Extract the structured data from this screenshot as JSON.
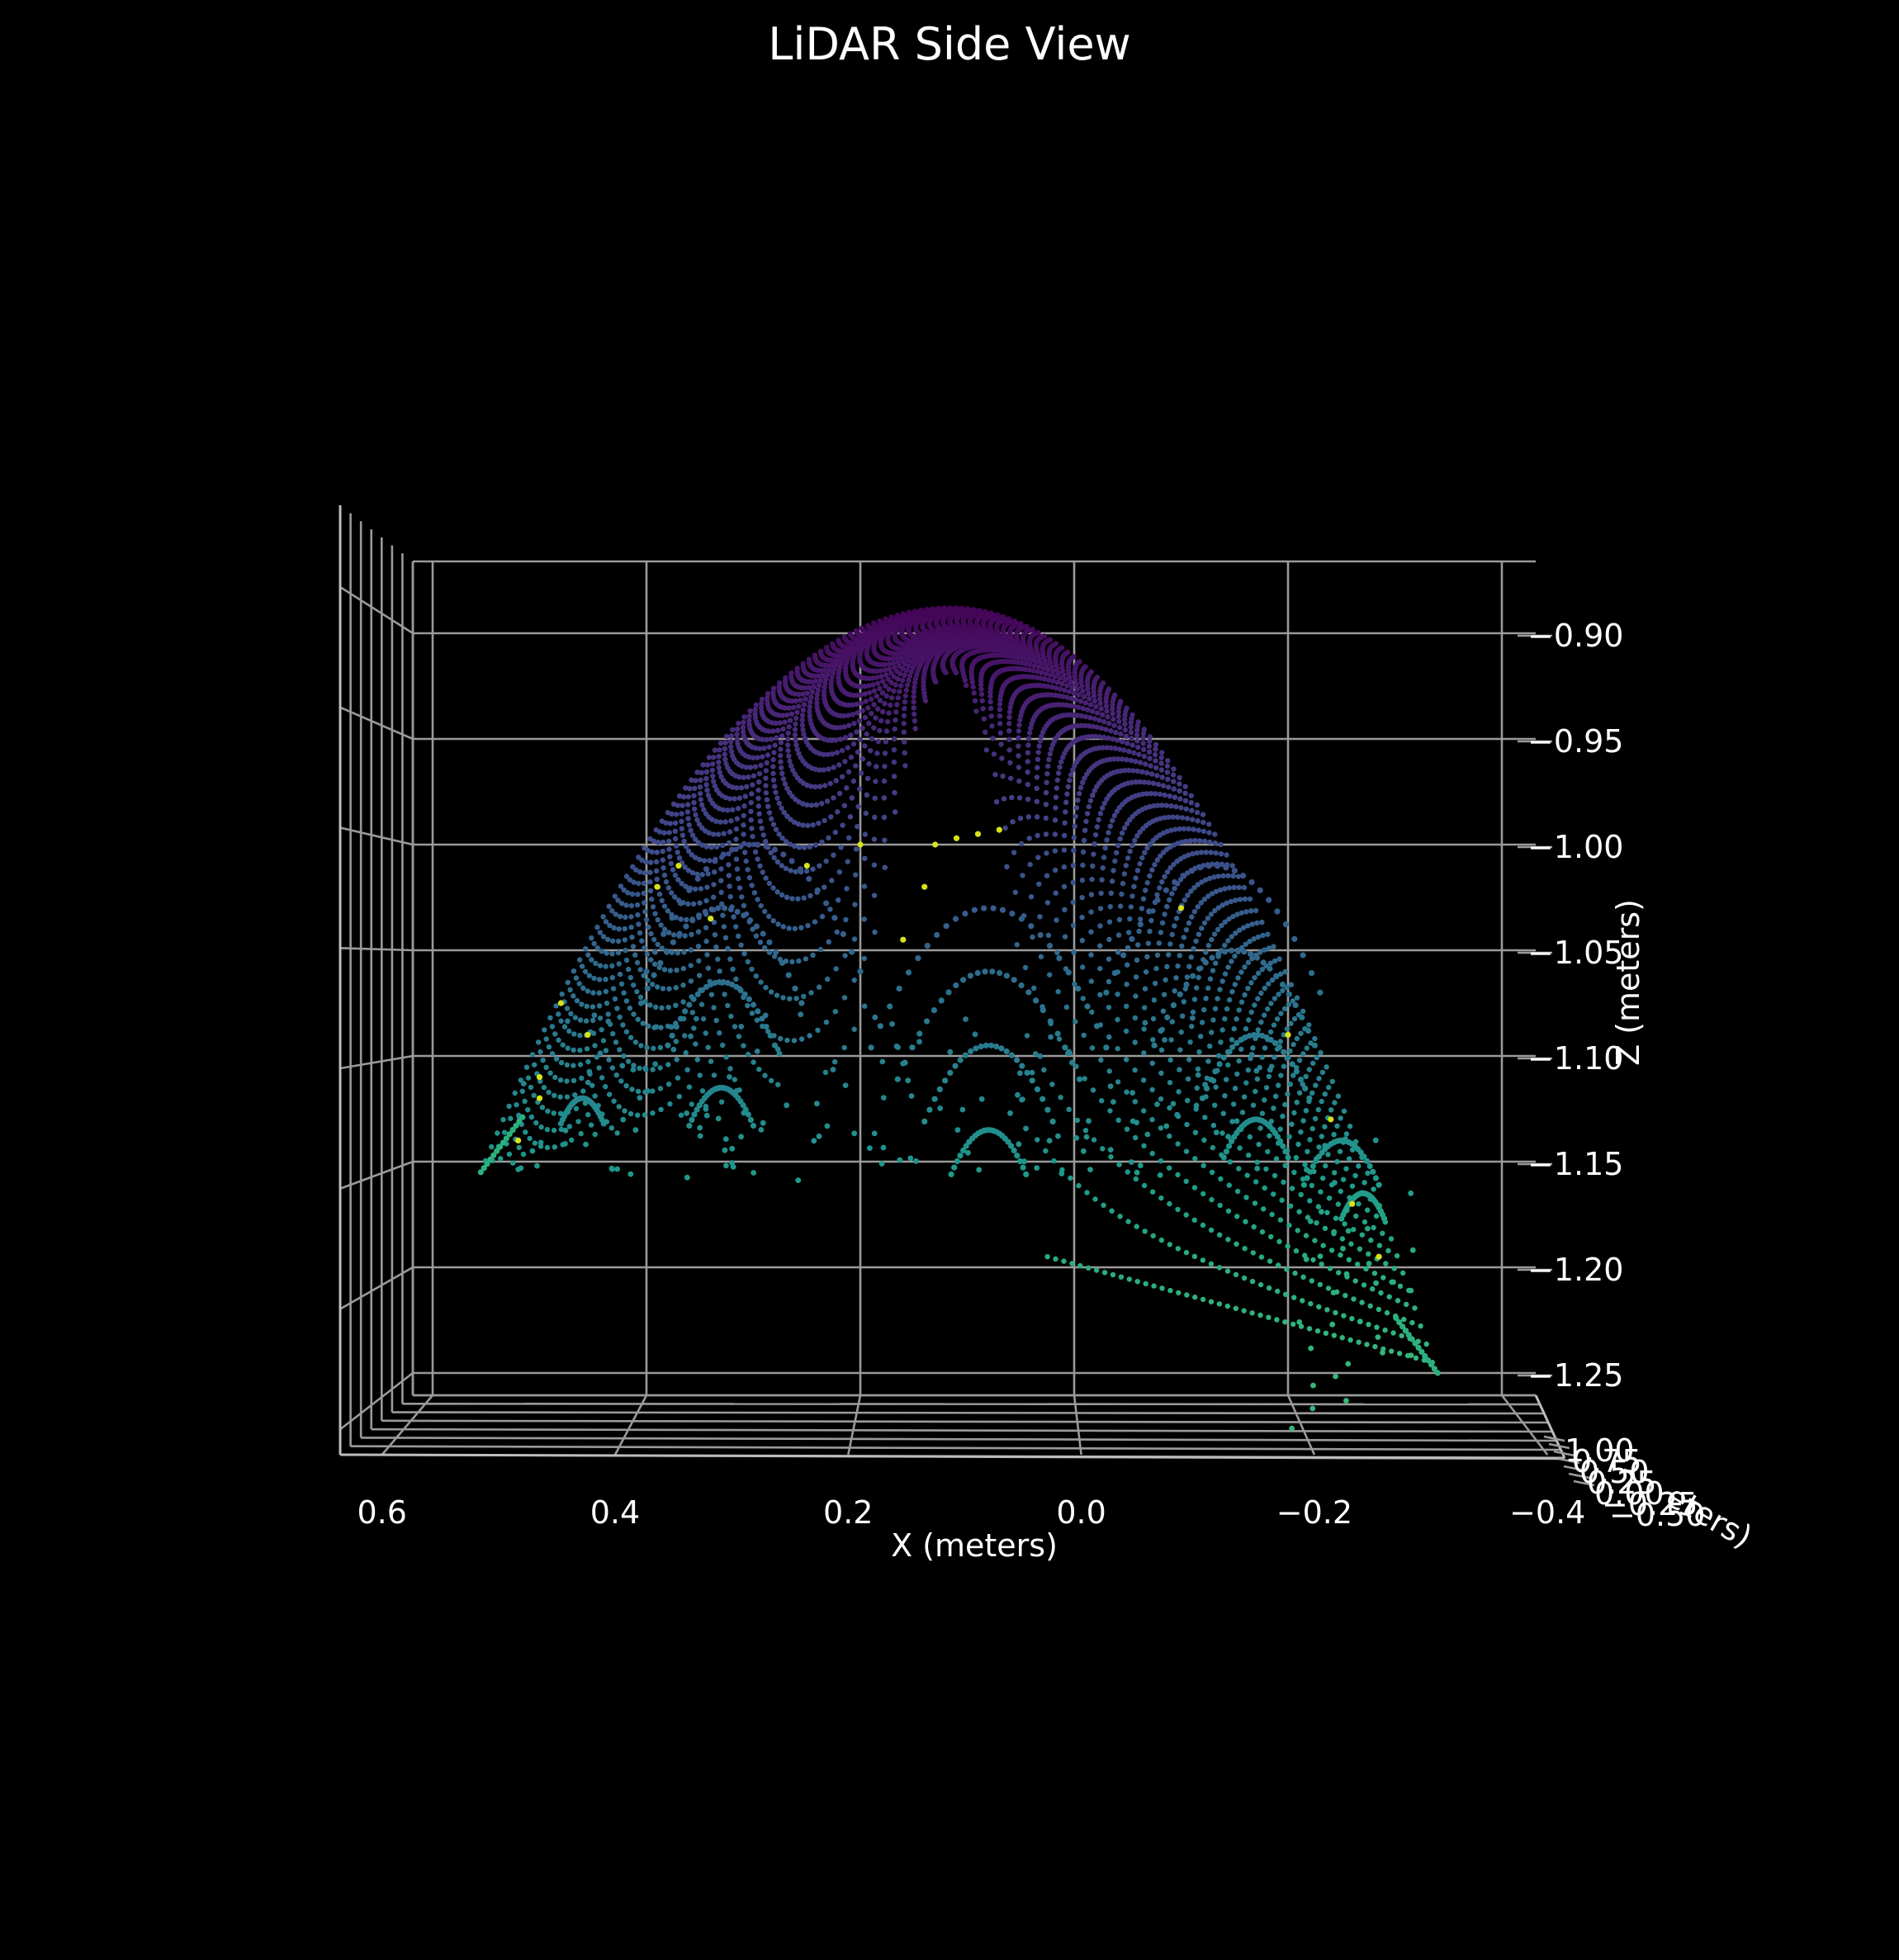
{
  "chart_data": {
    "type": "scatter",
    "subtype": "3d-point-cloud",
    "title": "LiDAR Side View",
    "xlabel": "X (meters)",
    "zlabel": "Z (meters)",
    "ylabel_visible_fragment": "eters)",
    "x_ticks": [
      "0.6",
      "0.4",
      "0.2",
      "0.0",
      "−0.2",
      "−0.4"
    ],
    "z_ticks": [
      "−0.90",
      "−0.95",
      "−1.00",
      "−1.05",
      "−1.10",
      "−1.15",
      "−1.20",
      "−1.25"
    ],
    "y_ticks_overlapping": [
      "1.00",
      "0.75",
      "0.50",
      "0.25",
      "0.00",
      "−0.25",
      "−0.50"
    ],
    "xlim": [
      0.6,
      -0.4
    ],
    "zlim": [
      -1.27,
      -0.875
    ],
    "surface": {
      "shape": "dome",
      "apex_x": 0.115,
      "apex_z": -0.885,
      "left_base": {
        "x": 0.555,
        "z": -1.155
      },
      "right_base": {
        "x": -0.335,
        "z": -1.245
      },
      "ring_count": 48,
      "inner_ring_apex_z_range": [
        -0.96,
        -1.135
      ]
    },
    "colormap": "viridis",
    "color_encoding": "height (higher = purple, lower = green/yellow)",
    "background": "#000000",
    "grid": true,
    "colors": {
      "top": "#482173",
      "mid": "#31688e",
      "low": "#21a685",
      "highlight": "#d8e219"
    }
  }
}
